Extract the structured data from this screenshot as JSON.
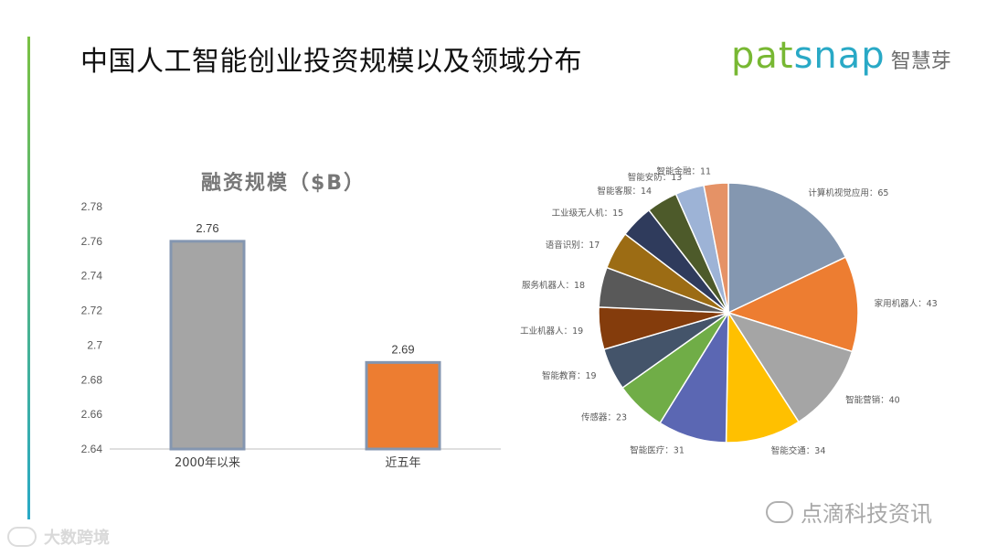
{
  "page": {
    "title": "中国人工智能创业投资规模以及领域分布",
    "logo": {
      "word": "patsnap",
      "cn": "智慧芽",
      "word_color_1": "#78b833",
      "word_color_2": "#29a9c6"
    },
    "watermark_left": "大数跨境",
    "watermark_right": "点滴科技资讯"
  },
  "colors": {
    "accent_green": "#7ac143",
    "accent_blue": "#29a9c6"
  },
  "chart_data": [
    {
      "type": "bar",
      "title": "融资规模（$B）",
      "categories": [
        "2000年以来",
        "近五年"
      ],
      "values": [
        2.76,
        2.69
      ],
      "value_labels": [
        "2.76",
        "2.69"
      ],
      "colors": [
        "#a5a5a5",
        "#ed7d31"
      ],
      "border_colors": [
        "#8496b0",
        "#8496b0"
      ],
      "ylim": [
        2.64,
        2.78
      ],
      "yticks": [
        "2.64",
        "2.66",
        "2.68",
        "2.7",
        "2.72",
        "2.74",
        "2.76",
        "2.78"
      ],
      "grid": false
    },
    {
      "type": "pie",
      "slices": [
        {
          "label": "计算机视觉应用：65",
          "value": 65,
          "color": "#8497b0"
        },
        {
          "label": "家用机器人：43",
          "value": 43,
          "color": "#ed7d31"
        },
        {
          "label": "智能营销：40",
          "value": 40,
          "color": "#a5a5a5"
        },
        {
          "label": "智能交通：34",
          "value": 34,
          "color": "#ffc000"
        },
        {
          "label": "智能医疗：31",
          "value": 31,
          "color": "#5b67b3"
        },
        {
          "label": "传感器：23",
          "value": 23,
          "color": "#70ad47"
        },
        {
          "label": "智能教育：19",
          "value": 19,
          "color": "#44546a"
        },
        {
          "label": "工业机器人：19",
          "value": 19,
          "color": "#843c0c"
        },
        {
          "label": "服务机器人：18",
          "value": 18,
          "color": "#595959"
        },
        {
          "label": "语音识别：17",
          "value": 17,
          "color": "#9c6c14"
        },
        {
          "label": "工业级无人机：15",
          "value": 15,
          "color": "#2f3b5c"
        },
        {
          "label": "智能客服：14",
          "value": 14,
          "color": "#4d5a2a"
        },
        {
          "label": "智能安防：13",
          "value": 13,
          "color": "#9db3d6"
        },
        {
          "label": "智能金融：11",
          "value": 11,
          "color": "#e59266"
        }
      ]
    }
  ]
}
